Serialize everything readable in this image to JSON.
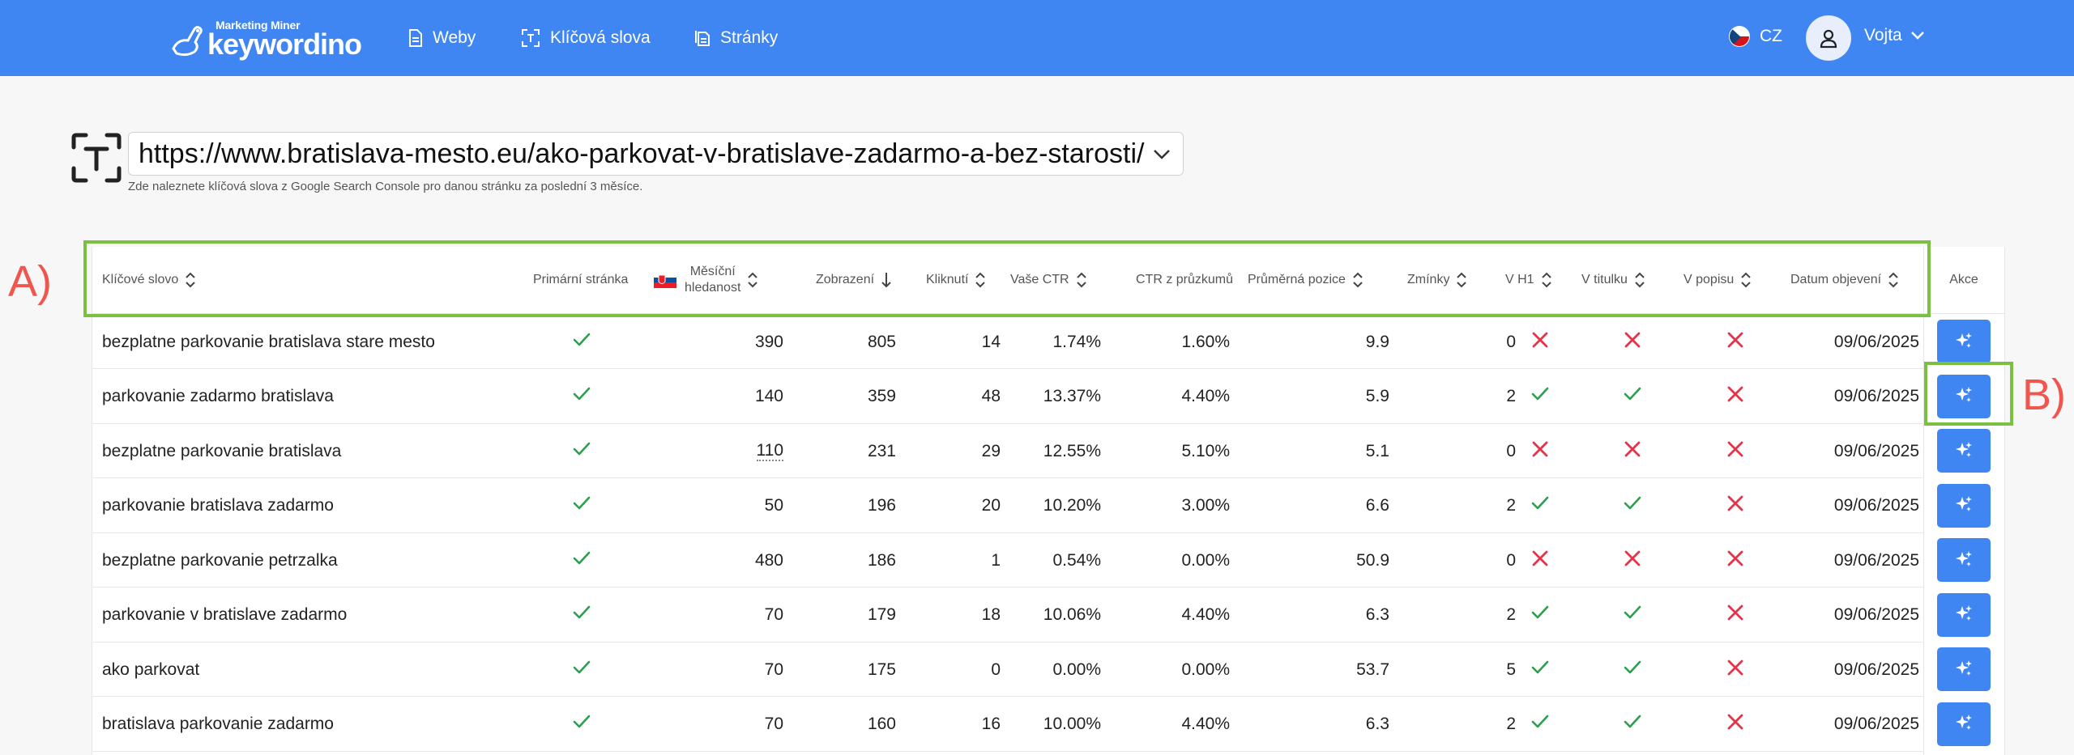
{
  "brand": {
    "small": "Marketing Miner",
    "name": "keywordino"
  },
  "nav": [
    {
      "label": "Weby",
      "icon": "document-icon"
    },
    {
      "label": "Klíčová slova",
      "icon": "keyword-scan-icon"
    },
    {
      "label": "Stránky",
      "icon": "pages-icon"
    }
  ],
  "lang": {
    "code": "CZ",
    "flag": "czech-flag-icon"
  },
  "user": {
    "name": "Vojta"
  },
  "url_select": {
    "value": "https://www.bratislava-mesto.eu/ako-parkovat-v-bratislave-zadarmo-a-bez-starosti/",
    "hint": "Zde naleznete klíčová slova z Google Search Console pro danou stránku za poslední 3 měsíce."
  },
  "table": {
    "columns": {
      "keyword": "Klíčové slovo",
      "primary": "Primární stránka",
      "volume_1": "Měsíční",
      "volume_2": "hledanost",
      "impressions": "Zobrazení",
      "clicks": "Kliknutí",
      "your_ctr": "Vaše CTR",
      "survey_ctr": "CTR z průzkumů",
      "avg_pos": "Průměrná pozice",
      "mentions": "Zmínky",
      "in_h1": "V H1",
      "in_title": "V titulku",
      "in_desc": "V popisu",
      "discovered": "Datum objevení",
      "action": "Akce"
    },
    "rows": [
      {
        "keyword": "bezplatne parkovanie bratislava stare mesto",
        "primary": true,
        "volume": "390",
        "impressions": "805",
        "clicks": "14",
        "your_ctr": "1.74%",
        "survey_ctr": "1.60%",
        "avg_pos": "9.9",
        "mentions": "0",
        "h1": false,
        "title": false,
        "desc": false,
        "date": "09/06/2025"
      },
      {
        "keyword": "parkovanie zadarmo bratislava",
        "primary": true,
        "volume": "140",
        "impressions": "359",
        "clicks": "48",
        "your_ctr": "13.37%",
        "survey_ctr": "4.40%",
        "avg_pos": "5.9",
        "mentions": "2",
        "h1": true,
        "title": true,
        "desc": false,
        "date": "09/06/2025"
      },
      {
        "keyword": "bezplatne parkovanie bratislava",
        "primary": true,
        "volume": "110",
        "impressions": "231",
        "clicks": "29",
        "your_ctr": "12.55%",
        "survey_ctr": "5.10%",
        "avg_pos": "5.1",
        "mentions": "0",
        "h1": false,
        "title": false,
        "desc": false,
        "date": "09/06/2025"
      },
      {
        "keyword": "parkovanie bratislava zadarmo",
        "primary": true,
        "volume": "50",
        "impressions": "196",
        "clicks": "20",
        "your_ctr": "10.20%",
        "survey_ctr": "3.00%",
        "avg_pos": "6.6",
        "mentions": "2",
        "h1": true,
        "title": true,
        "desc": false,
        "date": "09/06/2025"
      },
      {
        "keyword": "bezplatne parkovanie petrzalka",
        "primary": true,
        "volume": "480",
        "impressions": "186",
        "clicks": "1",
        "your_ctr": "0.54%",
        "survey_ctr": "0.00%",
        "avg_pos": "50.9",
        "mentions": "0",
        "h1": false,
        "title": false,
        "desc": false,
        "date": "09/06/2025"
      },
      {
        "keyword": "parkovanie v bratislave zadarmo",
        "primary": true,
        "volume": "70",
        "impressions": "179",
        "clicks": "18",
        "your_ctr": "10.06%",
        "survey_ctr": "4.40%",
        "avg_pos": "6.3",
        "mentions": "2",
        "h1": true,
        "title": true,
        "desc": false,
        "date": "09/06/2025"
      },
      {
        "keyword": "ako parkovat",
        "primary": true,
        "volume": "70",
        "impressions": "175",
        "clicks": "0",
        "your_ctr": "0.00%",
        "survey_ctr": "0.00%",
        "avg_pos": "53.7",
        "mentions": "5",
        "h1": true,
        "title": true,
        "desc": false,
        "date": "09/06/2025"
      },
      {
        "keyword": "bratislava parkovanie zadarmo",
        "primary": true,
        "volume": "70",
        "impressions": "160",
        "clicks": "16",
        "your_ctr": "10.00%",
        "survey_ctr": "4.40%",
        "avg_pos": "6.3",
        "mentions": "2",
        "h1": true,
        "title": true,
        "desc": false,
        "date": "09/06/2025"
      }
    ]
  },
  "annotations": {
    "a": "A)",
    "b": "B)"
  },
  "colors": {
    "accent": "#3f86f3",
    "check": "#2e9e4f",
    "cross": "#e5344a",
    "annotation_box": "#79c043",
    "annotation_text": "#f0554e"
  }
}
